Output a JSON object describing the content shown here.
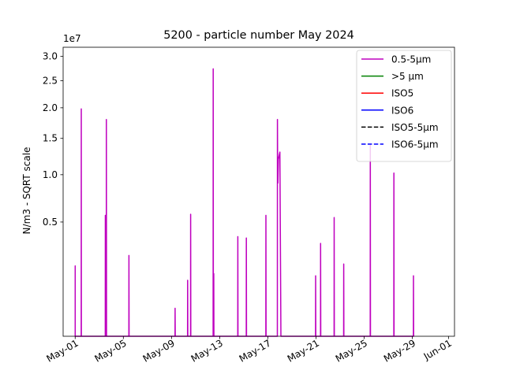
{
  "chart_data": {
    "type": "line",
    "title": "5200 - particle number May 2024",
    "xlabel": "",
    "ylabel": "N/m3 - SQRT scale",
    "offset_text": "1e7",
    "y_scale": "sqrt",
    "ylim": [
      0,
      3.2
    ],
    "xlim": [
      "2024-04-30T00:00",
      "2024-06-01T12:00"
    ],
    "grid": false,
    "legend_position": "top-right",
    "y_ticks": [
      {
        "value": 0.5,
        "label": "0.5"
      },
      {
        "value": 1.0,
        "label": "1.0"
      },
      {
        "value": 1.5,
        "label": "1.5"
      },
      {
        "value": 2.0,
        "label": "2.0"
      },
      {
        "value": 2.5,
        "label": "2.5"
      },
      {
        "value": 3.0,
        "label": "3.0"
      }
    ],
    "x_ticks": [
      {
        "value": "2024-05-01",
        "label": "May-01"
      },
      {
        "value": "2024-05-05",
        "label": "May-05"
      },
      {
        "value": "2024-05-09",
        "label": "May-09"
      },
      {
        "value": "2024-05-13",
        "label": "May-13"
      },
      {
        "value": "2024-05-17",
        "label": "May-17"
      },
      {
        "value": "2024-05-21",
        "label": "May-21"
      },
      {
        "value": "2024-05-25",
        "label": "May-25"
      },
      {
        "value": "2024-05-29",
        "label": "May-29"
      },
      {
        "value": "2024-06-01",
        "label": "Jun-01"
      }
    ],
    "series": [
      {
        "name": "0.5-5µm",
        "color": "#bf00bf",
        "dash": "solid",
        "points": [
          [
            "2024-05-01T00:00",
            0
          ],
          [
            "2024-05-01T00:01",
            0.19
          ],
          [
            "2024-05-01T00:04",
            0
          ],
          [
            "2024-05-01T12:00",
            0
          ],
          [
            "2024-05-01T12:10",
            1.98
          ],
          [
            "2024-05-01T12:22",
            0
          ],
          [
            "2024-05-03T12:00",
            0
          ],
          [
            "2024-05-03T12:05",
            0.56
          ],
          [
            "2024-05-03T12:30",
            0
          ],
          [
            "2024-05-03T14:00",
            0
          ],
          [
            "2024-05-03T14:10",
            1.8
          ],
          [
            "2024-05-03T14:25",
            0
          ],
          [
            "2024-05-05T11:00",
            0
          ],
          [
            "2024-05-05T11:10",
            0.25
          ],
          [
            "2024-05-05T11:25",
            0
          ],
          [
            "2024-05-09T07:00",
            0
          ],
          [
            "2024-05-09T07:10",
            0.03
          ],
          [
            "2024-05-09T07:30",
            0
          ],
          [
            "2024-05-10T08:00",
            0
          ],
          [
            "2024-05-10T08:10",
            0.12
          ],
          [
            "2024-05-10T08:30",
            0
          ],
          [
            "2024-05-10T14:00",
            0
          ],
          [
            "2024-05-10T14:10",
            0.57
          ],
          [
            "2024-05-10T14:30",
            0
          ],
          [
            "2024-05-12T11:00",
            0
          ],
          [
            "2024-05-12T11:10",
            2.74
          ],
          [
            "2024-05-12T11:25",
            0
          ],
          [
            "2024-05-12T12:00",
            0
          ],
          [
            "2024-05-12T12:10",
            0.15
          ],
          [
            "2024-05-12T12:30",
            0
          ],
          [
            "2024-05-14T12:00",
            0
          ],
          [
            "2024-05-14T12:10",
            0.38
          ],
          [
            "2024-05-14T12:30",
            0
          ],
          [
            "2024-05-15T05:00",
            0
          ],
          [
            "2024-05-15T05:10",
            0.37
          ],
          [
            "2024-05-15T05:30",
            0
          ],
          [
            "2024-05-16T20:00",
            0
          ],
          [
            "2024-05-16T20:10",
            0.56
          ],
          [
            "2024-05-16T20:30",
            0
          ],
          [
            "2024-05-17T19:00",
            0
          ],
          [
            "2024-05-17T19:10",
            1.8
          ],
          [
            "2024-05-17T19:30",
            1.2
          ],
          [
            "2024-05-17T20:00",
            0.9
          ],
          [
            "2024-05-17T21:00",
            1.2
          ],
          [
            "2024-05-18T00:00",
            1.3
          ],
          [
            "2024-05-18T02:00",
            0
          ],
          [
            "2024-05-20T23:00",
            0
          ],
          [
            "2024-05-20T23:10",
            0.14
          ],
          [
            "2024-05-20T23:30",
            0
          ],
          [
            "2024-05-21T09:00",
            0
          ],
          [
            "2024-05-21T09:10",
            0.33
          ],
          [
            "2024-05-21T09:30",
            0
          ],
          [
            "2024-05-22T12:00",
            0
          ],
          [
            "2024-05-22T12:10",
            0.54
          ],
          [
            "2024-05-22T12:30",
            0
          ],
          [
            "2024-05-23T07:00",
            0
          ],
          [
            "2024-05-23T07:10",
            0.2
          ],
          [
            "2024-05-23T07:30",
            0
          ],
          [
            "2024-05-25T12:00",
            0
          ],
          [
            "2024-05-25T12:10",
            1.4
          ],
          [
            "2024-05-25T12:30",
            0
          ],
          [
            "2024-05-27T11:00",
            0
          ],
          [
            "2024-05-27T11:10",
            1.02
          ],
          [
            "2024-05-27T11:30",
            0
          ],
          [
            "2024-05-29T02:00",
            0
          ],
          [
            "2024-05-29T02:10",
            0.14
          ],
          [
            "2024-05-29T02:30",
            0
          ]
        ]
      },
      {
        "name": ">5 µm",
        "color": "#008000",
        "dash": "solid",
        "points": []
      },
      {
        "name": "ISO5",
        "color": "#ff0000",
        "dash": "solid",
        "points": []
      },
      {
        "name": "ISO6",
        "color": "#0000ff",
        "dash": "solid",
        "points": []
      },
      {
        "name": "ISO5-5µm",
        "color": "#000000",
        "dash": "dashed",
        "points": []
      },
      {
        "name": "ISO6-5µm",
        "color": "#0000ff",
        "dash": "dashed",
        "points": []
      }
    ]
  }
}
